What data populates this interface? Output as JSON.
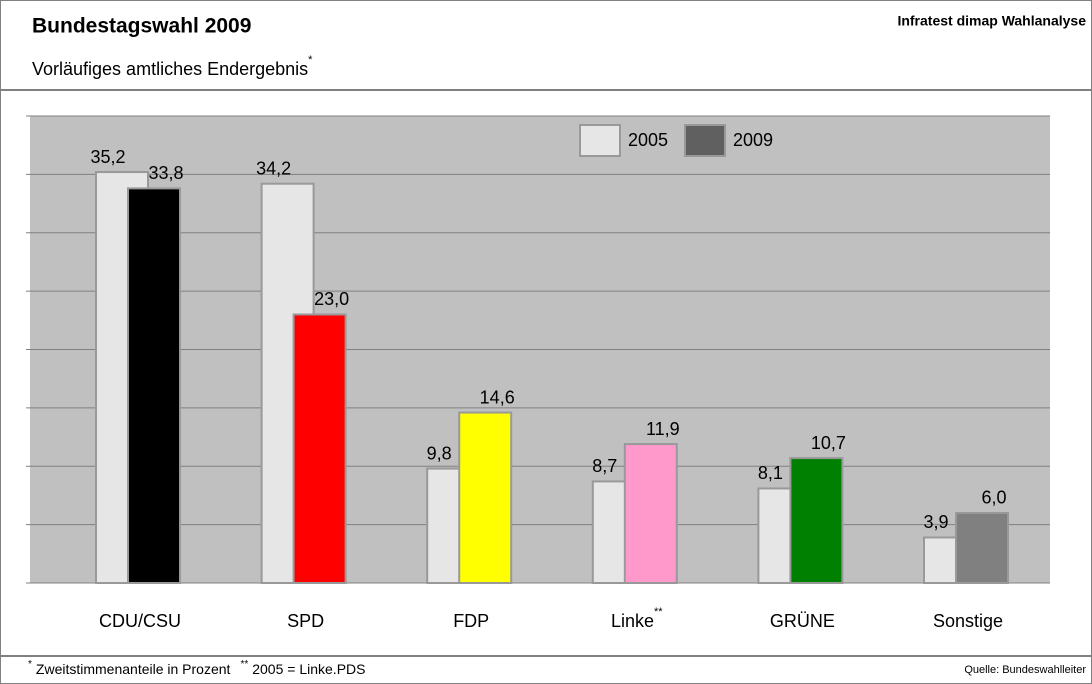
{
  "chart_data": {
    "type": "bar",
    "title": "Bundestagswahl 2009",
    "subtitle": "Vorläufiges amtliches Endergebnis",
    "subtitle_superscript": "*",
    "source_top": "Infratest dimap Wahlanalyse",
    "footnote_mark_1": "*",
    "footnote_1": "Zweitstimmenanteile in Prozent",
    "footnote_mark_2": "**",
    "footnote_2": "2005 = Linke.PDS",
    "source": "Quelle: Bundeswahlleiter",
    "categories": [
      "CDU/CSU",
      "SPD",
      "FDP",
      "Linke",
      "GRÜNE",
      "Sonstige"
    ],
    "category_superscripts": [
      null,
      null,
      null,
      "**",
      null,
      null
    ],
    "series": [
      {
        "name": "2005",
        "color": "#e6e6e6",
        "values": [
          35.2,
          34.2,
          9.8,
          8.7,
          8.1,
          3.9
        ],
        "value_labels": [
          "35,2",
          "34,2",
          "9,8",
          "8,7",
          "8,1",
          "3,9"
        ]
      },
      {
        "name": "2009",
        "color": "#606060",
        "colors": [
          "#000000",
          "#ff0000",
          "#ffff00",
          "#ff99cc",
          "#008000",
          "#808080"
        ],
        "values": [
          33.8,
          23.0,
          14.6,
          11.9,
          10.7,
          6.0
        ],
        "value_labels": [
          "33,8",
          "23,0",
          "14,6",
          "11,9",
          "10,7",
          "6,0"
        ]
      }
    ],
    "ylim": [
      0,
      40
    ],
    "yticks": [
      0,
      5,
      10,
      15,
      20,
      25,
      30,
      35,
      40
    ],
    "grid": true
  }
}
